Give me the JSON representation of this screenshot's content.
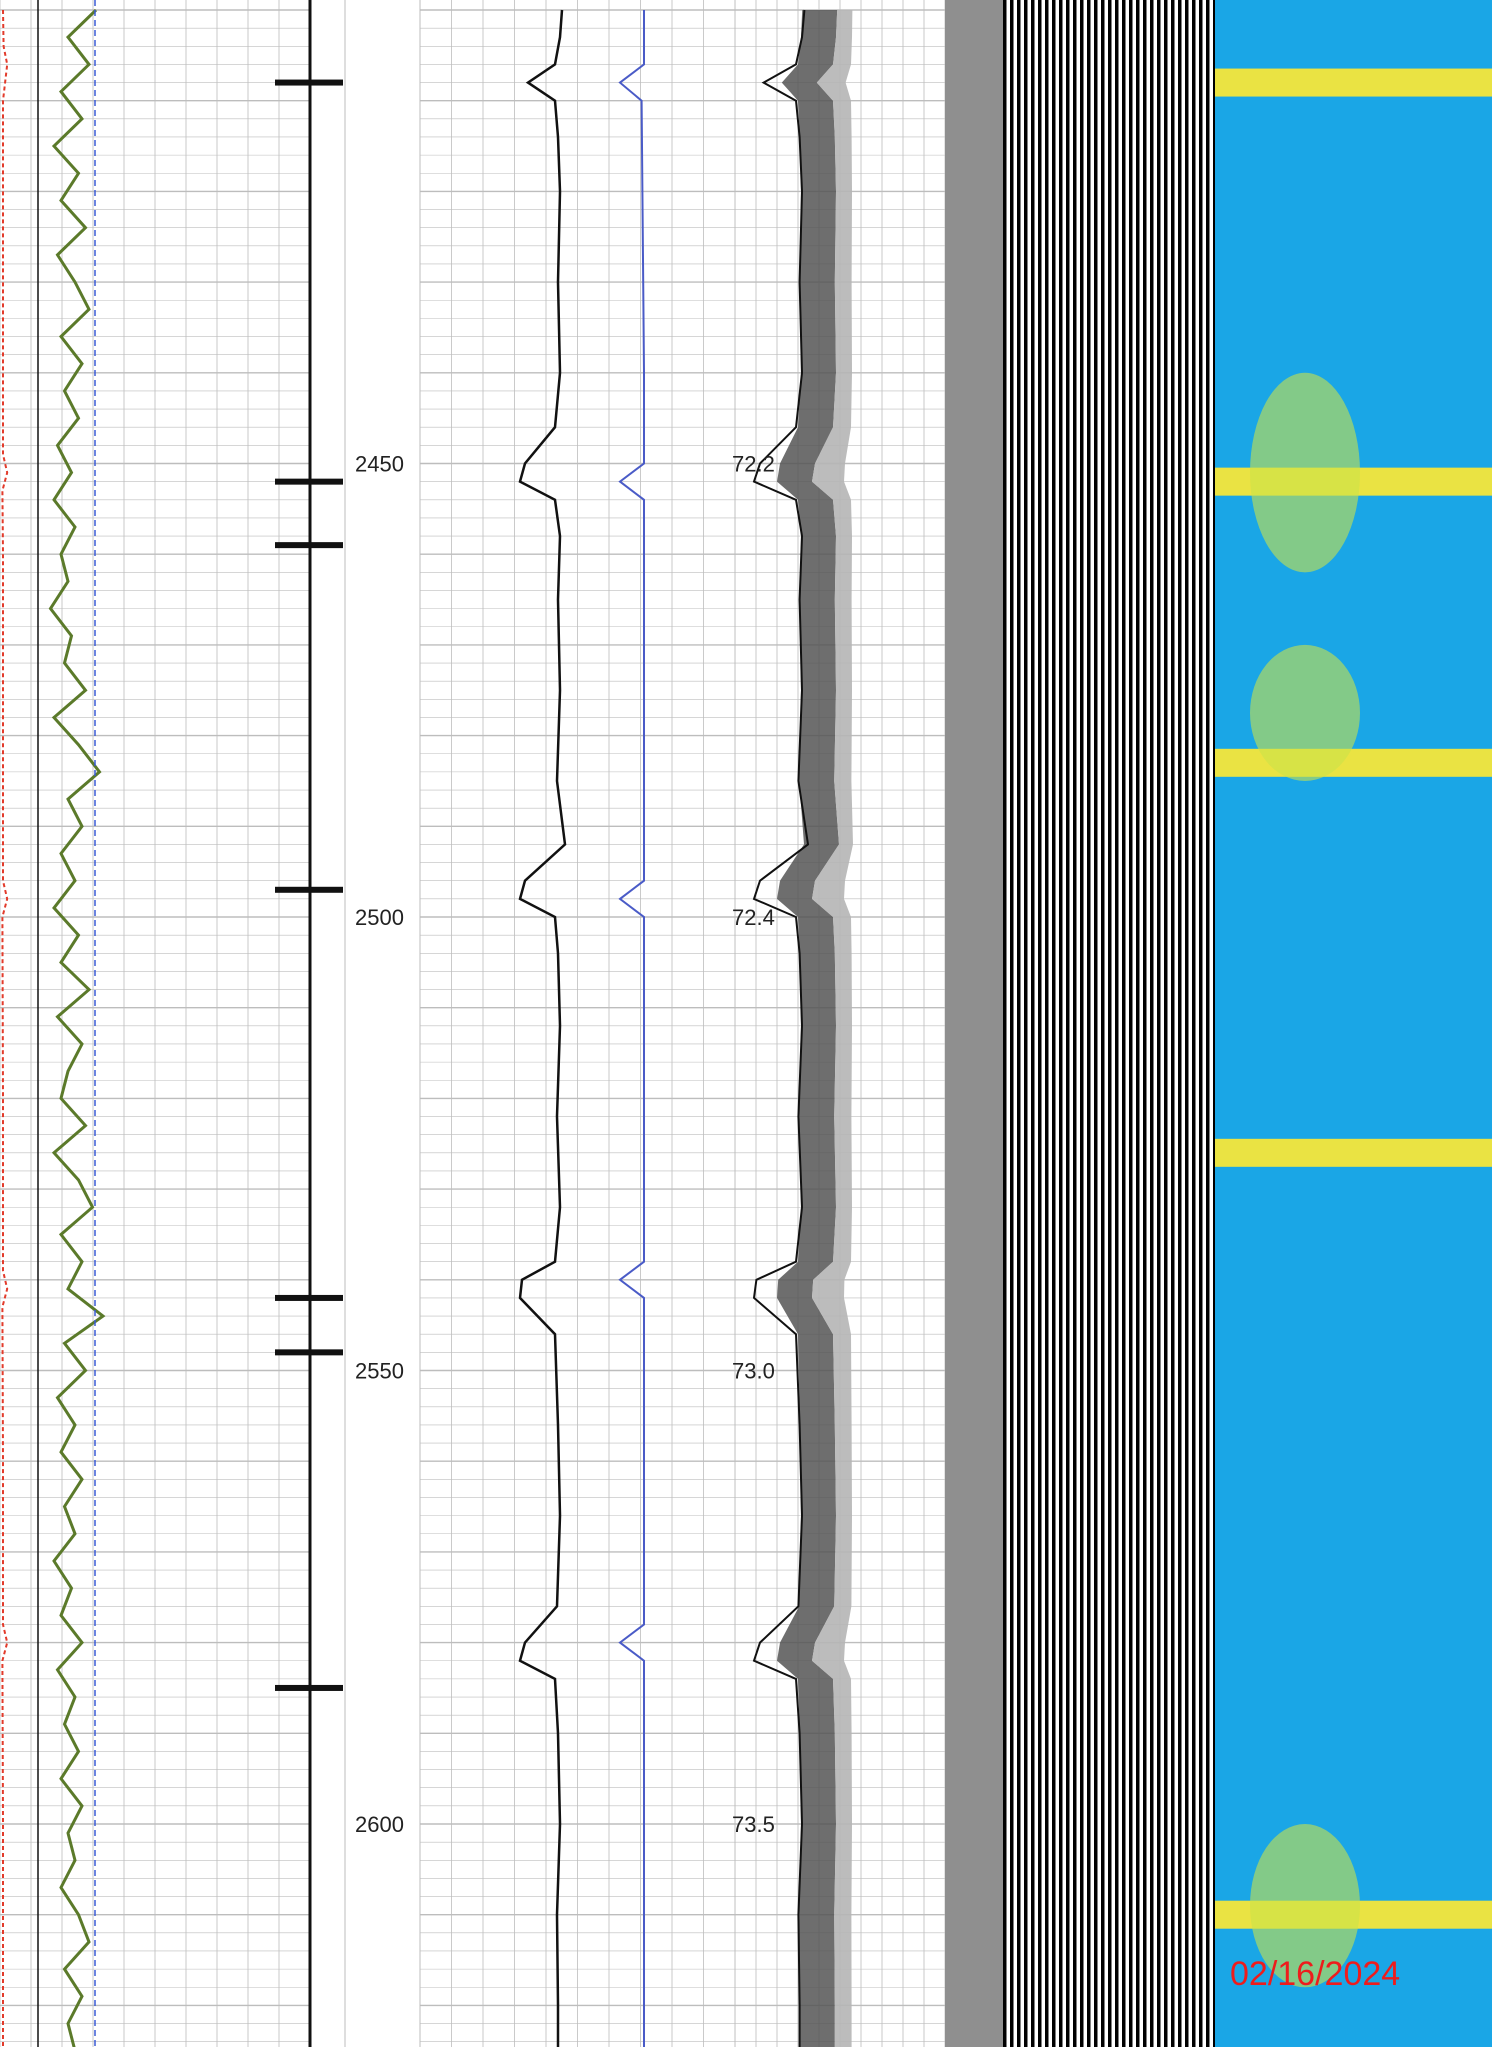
{
  "chart_data": {
    "type": "line",
    "depth_axis": {
      "min": 2400,
      "max": 2627,
      "tick_labels": [
        2450,
        2500,
        2550,
        2600
      ]
    },
    "time_labels": [
      {
        "depth": 2450,
        "text": "72.2"
      },
      {
        "depth": 2500,
        "text": "72.4"
      },
      {
        "depth": 2550,
        "text": "73.0"
      },
      {
        "depth": 2600,
        "text": "73.5"
      }
    ],
    "collar_depths": [
      2408,
      2452,
      2483,
      2526,
      2610
    ],
    "collar_depth_marks": [
      2408,
      2452,
      2459,
      2497,
      2542,
      2548,
      2585
    ],
    "colors": {
      "gamma": "#5b7a2a",
      "red_trace": "#e23b2b",
      "blue_dashed": "#3b5bd6",
      "blue_trace": "#4a5bc7",
      "black_trace": "#111111",
      "cbl_fill_dark": "#555555",
      "cbl_fill_light": "#b5b5b5",
      "vdl_black": "#000000",
      "map_blue": "#1aa6e6",
      "map_yellow": "#f6e63a",
      "date_red": "#ee1c1c",
      "grid": "#bdbdbd"
    },
    "series": [
      {
        "track": "gamma",
        "depth": [
          2400,
          2403,
          2406,
          2409,
          2412,
          2415,
          2418,
          2421,
          2424,
          2427,
          2430,
          2433,
          2436,
          2439,
          2442,
          2445,
          2448,
          2451,
          2454,
          2457,
          2460,
          2463,
          2466,
          2469,
          2472,
          2475,
          2478,
          2481,
          2484,
          2487,
          2490,
          2493,
          2496,
          2499,
          2502,
          2505,
          2508,
          2511,
          2514,
          2517,
          2520,
          2523,
          2526,
          2529,
          2532,
          2535,
          2538,
          2541,
          2544,
          2547,
          2550,
          2553,
          2556,
          2559,
          2562,
          2565,
          2568,
          2571,
          2574,
          2577,
          2580,
          2583,
          2586,
          2589,
          2592,
          2595,
          2598,
          2601,
          2604,
          2607,
          2610,
          2613,
          2616,
          2619,
          2622,
          2625
        ],
        "value": [
          0.8,
          0.4,
          0.7,
          0.3,
          0.6,
          0.2,
          0.55,
          0.3,
          0.65,
          0.25,
          0.5,
          0.7,
          0.3,
          0.6,
          0.35,
          0.55,
          0.25,
          0.45,
          0.2,
          0.5,
          0.3,
          0.4,
          0.15,
          0.45,
          0.35,
          0.65,
          0.2,
          0.55,
          0.85,
          0.4,
          0.6,
          0.3,
          0.5,
          0.2,
          0.55,
          0.3,
          0.7,
          0.25,
          0.6,
          0.4,
          0.3,
          0.65,
          0.2,
          0.55,
          0.75,
          0.3,
          0.6,
          0.4,
          0.9,
          0.35,
          0.65,
          0.25,
          0.5,
          0.3,
          0.6,
          0.35,
          0.5,
          0.2,
          0.45,
          0.3,
          0.6,
          0.25,
          0.5,
          0.35,
          0.55,
          0.3,
          0.6,
          0.4,
          0.5,
          0.3,
          0.55,
          0.7,
          0.35,
          0.6,
          0.4,
          0.5
        ]
      },
      {
        "track": "red_trace",
        "depth": [
          2400,
          2404,
          2406,
          2410,
          2430,
          2449,
          2451,
          2453,
          2460,
          2490,
          2496,
          2498,
          2500,
          2520,
          2539,
          2541,
          2543,
          2560,
          2578,
          2580,
          2582,
          2600,
          2627
        ],
        "value": [
          0.05,
          0.06,
          0.12,
          0.05,
          0.05,
          0.05,
          0.12,
          0.04,
          0.05,
          0.05,
          0.05,
          0.12,
          0.04,
          0.05,
          0.05,
          0.12,
          0.04,
          0.05,
          0.05,
          0.12,
          0.04,
          0.05,
          0.05
        ]
      },
      {
        "track": "cbl_amplitude",
        "depth": [
          2400,
          2403,
          2406,
          2408,
          2410,
          2414,
          2420,
          2430,
          2440,
          2446,
          2450,
          2452,
          2454,
          2458,
          2465,
          2475,
          2485,
          2492,
          2496,
          2498,
          2500,
          2504,
          2512,
          2522,
          2532,
          2538,
          2540,
          2542,
          2546,
          2556,
          2566,
          2576,
          2580,
          2582,
          2584,
          2590,
          2600,
          2610,
          2620,
          2627
        ],
        "value": [
          0.62,
          0.6,
          0.55,
          0.28,
          0.55,
          0.58,
          0.6,
          0.58,
          0.6,
          0.55,
          0.25,
          0.2,
          0.55,
          0.6,
          0.58,
          0.6,
          0.57,
          0.65,
          0.25,
          0.2,
          0.55,
          0.58,
          0.6,
          0.57,
          0.6,
          0.55,
          0.22,
          0.2,
          0.55,
          0.58,
          0.6,
          0.57,
          0.25,
          0.2,
          0.55,
          0.58,
          0.6,
          0.57,
          0.58,
          0.58
        ]
      },
      {
        "track": "blue_trace",
        "depth": [
          2400,
          2406,
          2408,
          2410,
          2440,
          2450,
          2452,
          2454,
          2490,
          2496,
          2498,
          2500,
          2538,
          2540,
          2542,
          2578,
          2580,
          2582,
          2627
        ],
        "value": [
          0.7,
          0.7,
          0.5,
          0.68,
          0.7,
          0.7,
          0.5,
          0.7,
          0.7,
          0.7,
          0.5,
          0.7,
          0.7,
          0.5,
          0.7,
          0.7,
          0.5,
          0.7,
          0.7
        ]
      }
    ]
  },
  "footer": {
    "date_stamp": "02/16/2024"
  }
}
